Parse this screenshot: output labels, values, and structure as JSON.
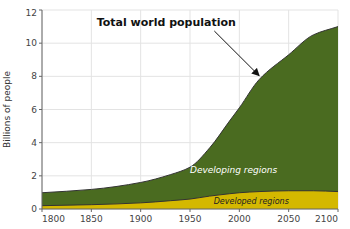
{
  "chart_data": {
    "type": "area",
    "title": "Total world population",
    "ylabel": "Billions of people",
    "x": [
      1800,
      1850,
      1900,
      1930,
      1950,
      1970,
      1990,
      2000,
      2020,
      2050,
      2075,
      2100
    ],
    "series": [
      {
        "color": "#d4b800",
        "values": [
          0.2,
          0.26,
          0.37,
          0.5,
          0.6,
          0.78,
          0.92,
          0.98,
          1.05,
          1.1,
          1.1,
          1.05
        ]
      },
      {
        "color": "#4a6b20",
        "values": [
          0.98,
          1.18,
          1.6,
          2.07,
          2.52,
          3.69,
          5.3,
          6.1,
          7.8,
          9.3,
          10.5,
          11.0
        ]
      }
    ],
    "annotations": [
      "Developing regions",
      "Developed regions"
    ],
    "xlim": [
      1800,
      2100
    ],
    "xticks": [
      1800,
      1850,
      1900,
      1950,
      2000,
      2050,
      2100
    ],
    "ylim": [
      0,
      12
    ],
    "yticks": [
      0,
      2,
      4,
      6,
      8,
      10,
      12
    ],
    "grid": true
  }
}
